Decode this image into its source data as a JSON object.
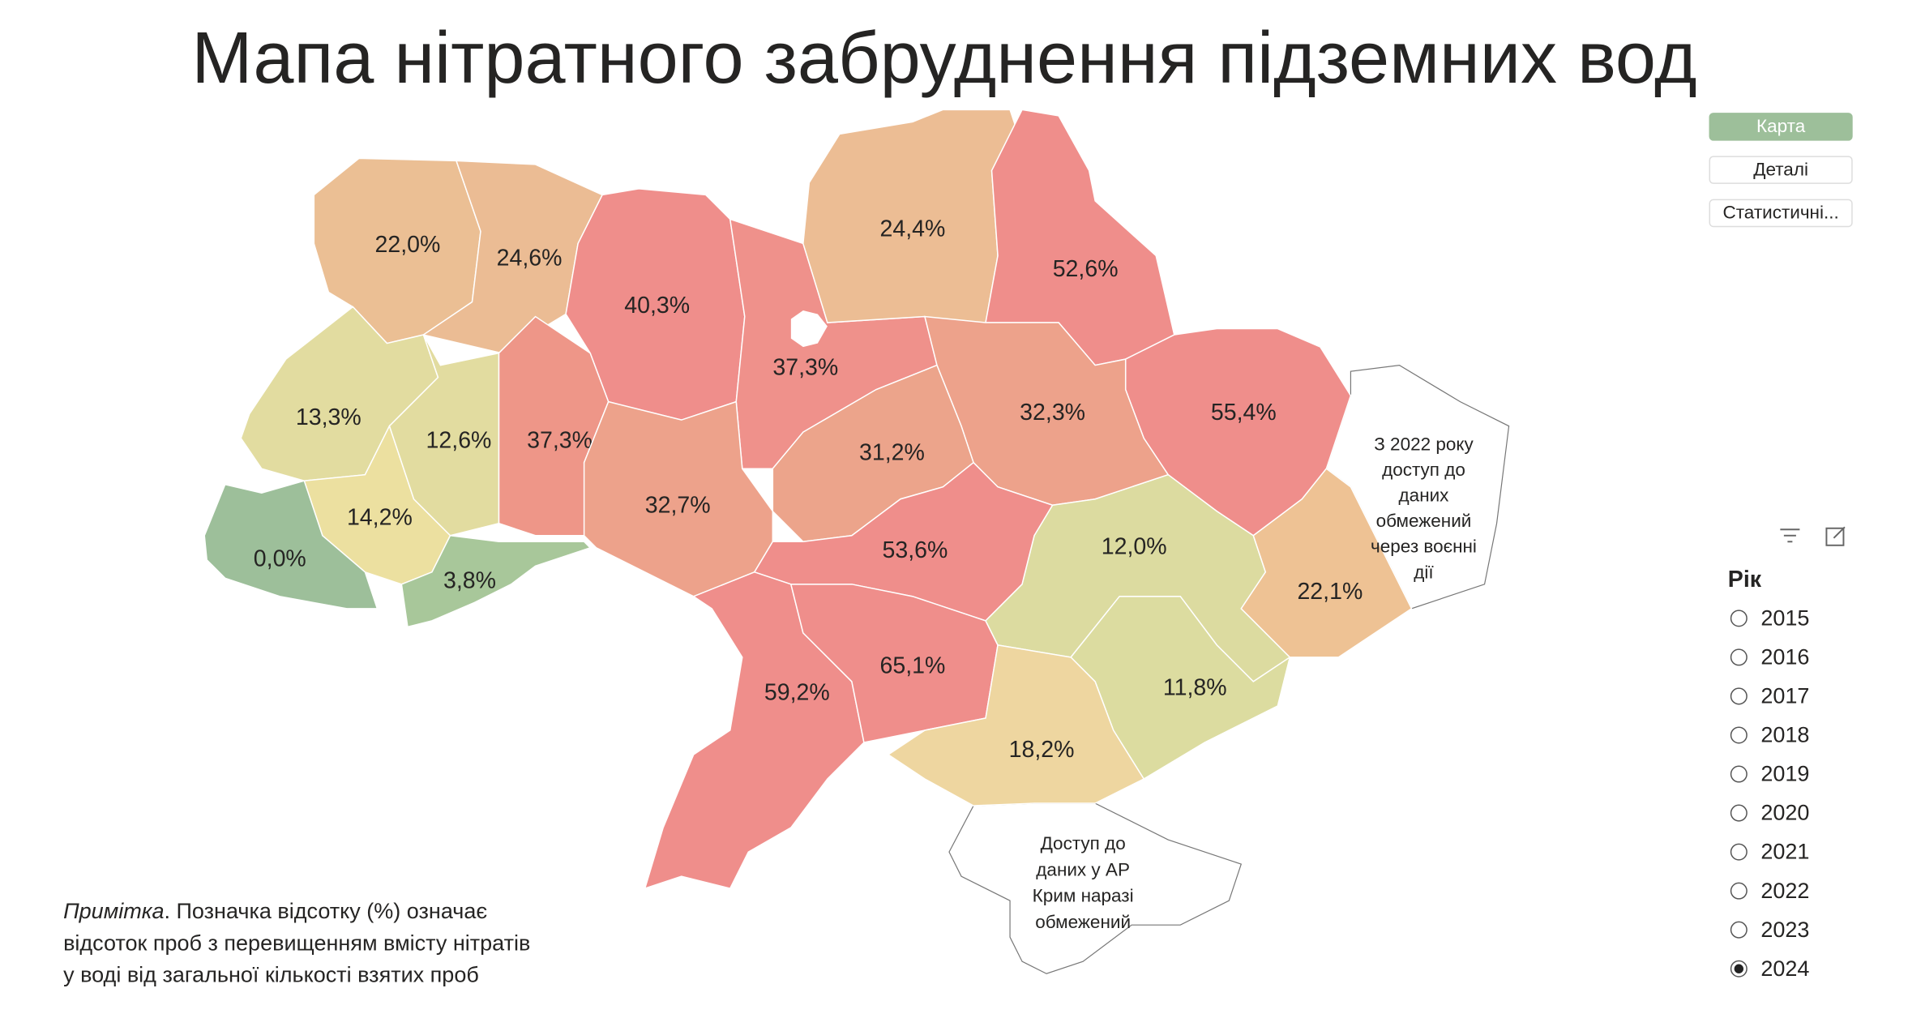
{
  "title": "Мапа нітратного забруднення підземних вод",
  "nav": [
    "Карта",
    "Деталі",
    "Статистичні..."
  ],
  "nav_active": "Карта",
  "regions": [
    {
      "label": "22,0%",
      "color": "#ebbf94"
    },
    {
      "label": "24,6%",
      "color": "#ebbc94"
    },
    {
      "label": "40,3%",
      "color": "#ef8e8b"
    },
    {
      "label": "37,3%",
      "color": "#ef918b"
    },
    {
      "label": "24,4%",
      "color": "#ecbd94"
    },
    {
      "label": "52,6%",
      "color": "#ef8e8b"
    },
    {
      "label": "55,4%",
      "color": "#ef8e8b"
    },
    {
      "label": "32,3%",
      "color": "#eda28b"
    },
    {
      "label": "31,2%",
      "color": "#eca48b"
    },
    {
      "label": "13,3%",
      "color": "#e2dca0"
    },
    {
      "label": "12,6%",
      "color": "#e2dca0"
    },
    {
      "label": "14,2%",
      "color": "#ece0a0"
    },
    {
      "label": "0,0%",
      "color": "#9dbf9a"
    },
    {
      "label": "3,8%",
      "color": "#a8c79a"
    },
    {
      "label": "37,3%",
      "color": "#ee9688"
    },
    {
      "label": "32,7%",
      "color": "#eda28b"
    },
    {
      "label": "53,6%",
      "color": "#ef8e8b"
    },
    {
      "label": "59,2%",
      "color": "#ef8e8b"
    },
    {
      "label": "65,1%",
      "color": "#ef8e8b"
    },
    {
      "label": "12,0%",
      "color": "#dcdba0"
    },
    {
      "label": "11,8%",
      "color": "#dcdca0"
    },
    {
      "label": "18,2%",
      "color": "#eed6a0"
    },
    {
      "label": "22,1%",
      "color": "#eec294"
    }
  ],
  "east_note": [
    "З 2022 року",
    "доступ до",
    "даних",
    "обмежений",
    "через воєнні",
    "дії"
  ],
  "crimea_note": [
    "Доступ до",
    "даних у АР",
    "Крим наразі",
    "обмежений"
  ],
  "note": {
    "italic": "Примітка",
    "lines": [
      ". Позначка відсотку (%) означає",
      "відсоток проб з перевищенням вмісту нітратів",
      "у воді від загальної кількості взятих проб"
    ]
  },
  "slicer": {
    "title": "Рік",
    "options": [
      "2015",
      "2016",
      "2017",
      "2018",
      "2019",
      "2020",
      "2021",
      "2022",
      "2023",
      "2024"
    ],
    "selected": "2024"
  }
}
